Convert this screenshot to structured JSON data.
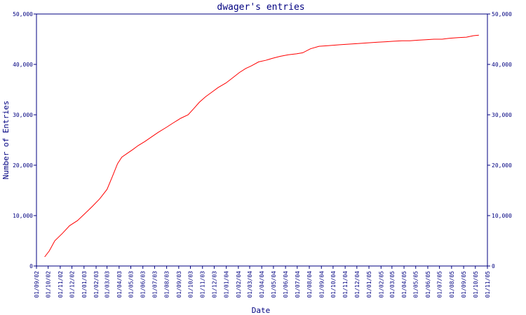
{
  "chart_data": {
    "type": "line",
    "title": "dwager's entries",
    "xlabel": "Date",
    "ylabel": "Number of Entries",
    "ylim": [
      0,
      50000
    ],
    "y_ticks": [
      0,
      10000,
      20000,
      30000,
      40000,
      50000
    ],
    "y_tick_labels": [
      "0",
      "10,000",
      "20,000",
      "30,000",
      "40,000",
      "50,000"
    ],
    "right_y_tick_labels": [
      "0",
      "10,000",
      "20,000",
      "30,000",
      "40,000",
      "50,000"
    ],
    "x_tick_labels": [
      "01/09/02",
      "01/10/02",
      "01/11/02",
      "01/12/02",
      "01/01/03",
      "01/02/03",
      "01/03/03",
      "01/04/03",
      "01/05/03",
      "01/06/03",
      "01/07/03",
      "01/08/03",
      "01/09/03",
      "01/10/03",
      "01/11/03",
      "01/12/03",
      "01/01/04",
      "01/02/04",
      "01/03/04",
      "01/04/04",
      "01/05/04",
      "01/06/04",
      "01/07/04",
      "01/08/04",
      "01/09/04",
      "01/10/04",
      "01/11/04",
      "01/12/04",
      "01/01/05",
      "01/02/05",
      "01/03/05",
      "01/04/05",
      "01/05/05",
      "01/06/05",
      "01/07/05",
      "01/08/05",
      "01/09/05",
      "01/10/05",
      "01/11/05"
    ],
    "grid": false,
    "line_color": "#ff0000",
    "axis_color": "#000080",
    "series": [
      {
        "x": [
          "2002-09-22",
          "2002-10-04",
          "2002-10-18",
          "2002-11-07",
          "2002-11-25",
          "2002-12-15",
          "2003-01-02",
          "2003-01-22",
          "2003-02-10",
          "2003-03-01",
          "2003-03-15",
          "2003-03-28",
          "2003-04-08",
          "2003-04-23",
          "2003-05-06",
          "2003-05-20",
          "2003-06-06",
          "2003-06-23",
          "2003-07-10",
          "2003-07-31",
          "2003-08-18",
          "2003-09-06",
          "2003-09-25",
          "2003-10-09",
          "2003-10-24",
          "2003-11-09",
          "2003-11-25",
          "2003-12-11",
          "2003-12-31",
          "2004-01-17",
          "2004-02-04",
          "2004-02-20",
          "2004-03-05",
          "2004-03-24",
          "2004-04-11",
          "2004-04-28",
          "2004-05-18",
          "2004-06-08",
          "2004-06-29",
          "2004-07-15",
          "2004-08-04",
          "2004-08-26",
          "2004-09-15",
          "2004-10-02",
          "2004-10-19",
          "2004-11-05",
          "2004-11-26",
          "2004-12-16",
          "2005-01-04",
          "2005-01-24",
          "2005-02-14",
          "2005-03-06",
          "2005-03-27",
          "2005-04-16",
          "2005-05-07",
          "2005-05-27",
          "2005-06-17",
          "2005-07-08",
          "2005-07-28",
          "2005-08-18",
          "2005-09-08",
          "2005-09-26",
          "2005-10-10"
        ],
        "y": [
          1800,
          3000,
          5000,
          6500,
          8000,
          9000,
          10300,
          11800,
          13300,
          15200,
          17800,
          20300,
          21600,
          22400,
          23100,
          23900,
          24700,
          25600,
          26500,
          27500,
          28400,
          29300,
          30000,
          31200,
          32500,
          33600,
          34500,
          35400,
          36300,
          37300,
          38400,
          39200,
          39700,
          40500,
          40800,
          41200,
          41600,
          41900,
          42100,
          42300,
          43100,
          43600,
          43700,
          43800,
          43900,
          44000,
          44100,
          44200,
          44300,
          44400,
          44500,
          44600,
          44700,
          44700,
          44800,
          44900,
          45000,
          45000,
          45200,
          45300,
          45400,
          45700,
          45800
        ]
      }
    ]
  }
}
